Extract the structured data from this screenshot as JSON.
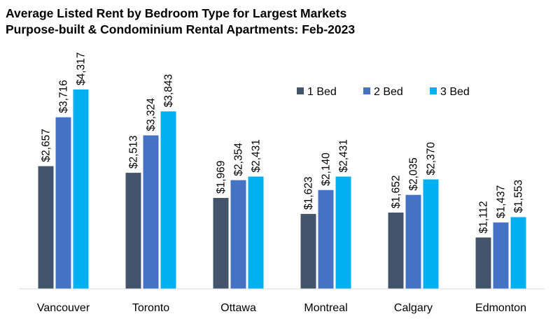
{
  "chart_data": {
    "type": "bar",
    "title": "Average Listed Rent by Bedroom Type for Largest Markets",
    "subtitle": "Purpose-built & Condominium Rental Apartments: Feb-2023",
    "categories": [
      "Vancouver",
      "Toronto",
      "Ottawa",
      "Montreal",
      "Calgary",
      "Edmonton"
    ],
    "series": [
      {
        "name": "1 Bed",
        "color": "#44546A",
        "values": [
          2657,
          2513,
          1969,
          1623,
          1652,
          1112
        ],
        "labels": [
          "$2,657",
          "$2,513",
          "$1,969",
          "$1,623",
          "$1,652",
          "$1,112"
        ]
      },
      {
        "name": "2 Bed",
        "color": "#4472C4",
        "values": [
          3716,
          3324,
          2354,
          2140,
          2035,
          1437
        ],
        "labels": [
          "$3,716",
          "$3,324",
          "$2,354",
          "$2,140",
          "$2,035",
          "$1,437"
        ]
      },
      {
        "name": "3 Bed",
        "color": "#00B0F0",
        "values": [
          4317,
          3843,
          2431,
          2431,
          2370,
          1553
        ],
        "labels": [
          "$4,317",
          "$3,843",
          "$2,431",
          "$2,431",
          "$2,370",
          "$1,553"
        ]
      }
    ],
    "ylim": [
      0,
      4500
    ],
    "grid": false,
    "legend": "top-right",
    "xlabel": "",
    "ylabel": ""
  }
}
